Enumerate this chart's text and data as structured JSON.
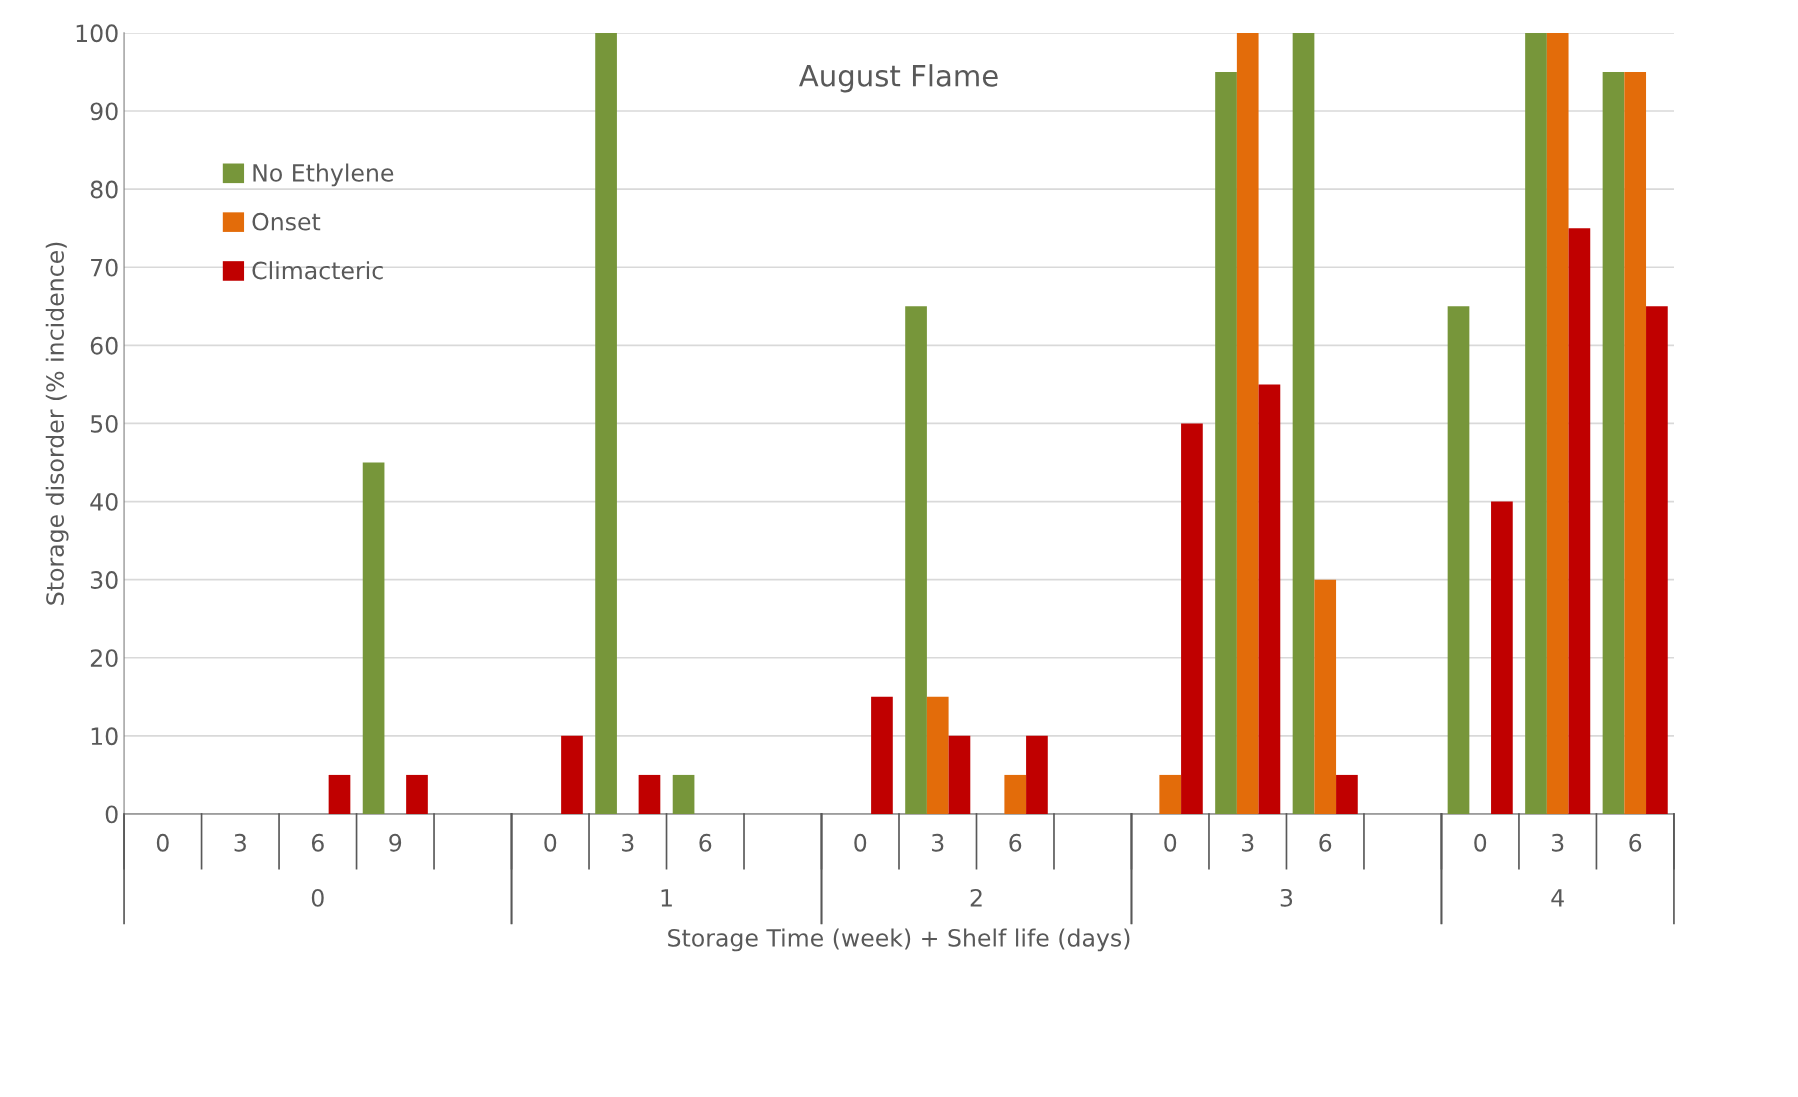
{
  "chart_data": {
    "type": "bar",
    "title": "August Flame",
    "xlabel": "Storage Time (week) + Shelf life (days)",
    "ylabel": "Storage disorder (% incidence)",
    "categories": [
      "0",
      "3",
      "6",
      "9",
      null,
      "0",
      "3",
      "6",
      null,
      "0",
      "3",
      "6",
      null,
      "0",
      "3",
      "6",
      null,
      "0",
      "3",
      "6"
    ],
    "annotations": [
      "0",
      "1",
      "2",
      "3",
      "4"
    ],
    "series": [
      {
        "name": "No Ethylene",
        "color": "#77963a",
        "values": [
          0,
          0,
          0,
          45,
          0,
          0,
          100,
          5,
          0,
          0,
          65,
          0,
          0,
          0,
          95,
          100,
          0,
          65,
          100,
          95
        ]
      },
      {
        "name": "Onset",
        "color": "#e36c0a",
        "values": [
          0,
          0,
          0,
          0,
          0,
          0,
          0,
          0,
          0,
          0,
          15,
          5,
          0,
          5,
          100,
          30,
          0,
          0,
          100,
          95
        ]
      },
      {
        "name": "Climacteric",
        "color": "#c00000",
        "values": [
          0,
          0,
          5,
          5,
          0,
          10,
          5,
          0,
          0,
          15,
          10,
          10,
          0,
          50,
          55,
          5,
          0,
          40,
          75,
          65
        ]
      }
    ],
    "ylim": [
      0,
      100
    ],
    "yticks": [
      0,
      10,
      20,
      30,
      40,
      50,
      60,
      70,
      80,
      90,
      100
    ],
    "grid": "y",
    "legend": "top left"
  }
}
